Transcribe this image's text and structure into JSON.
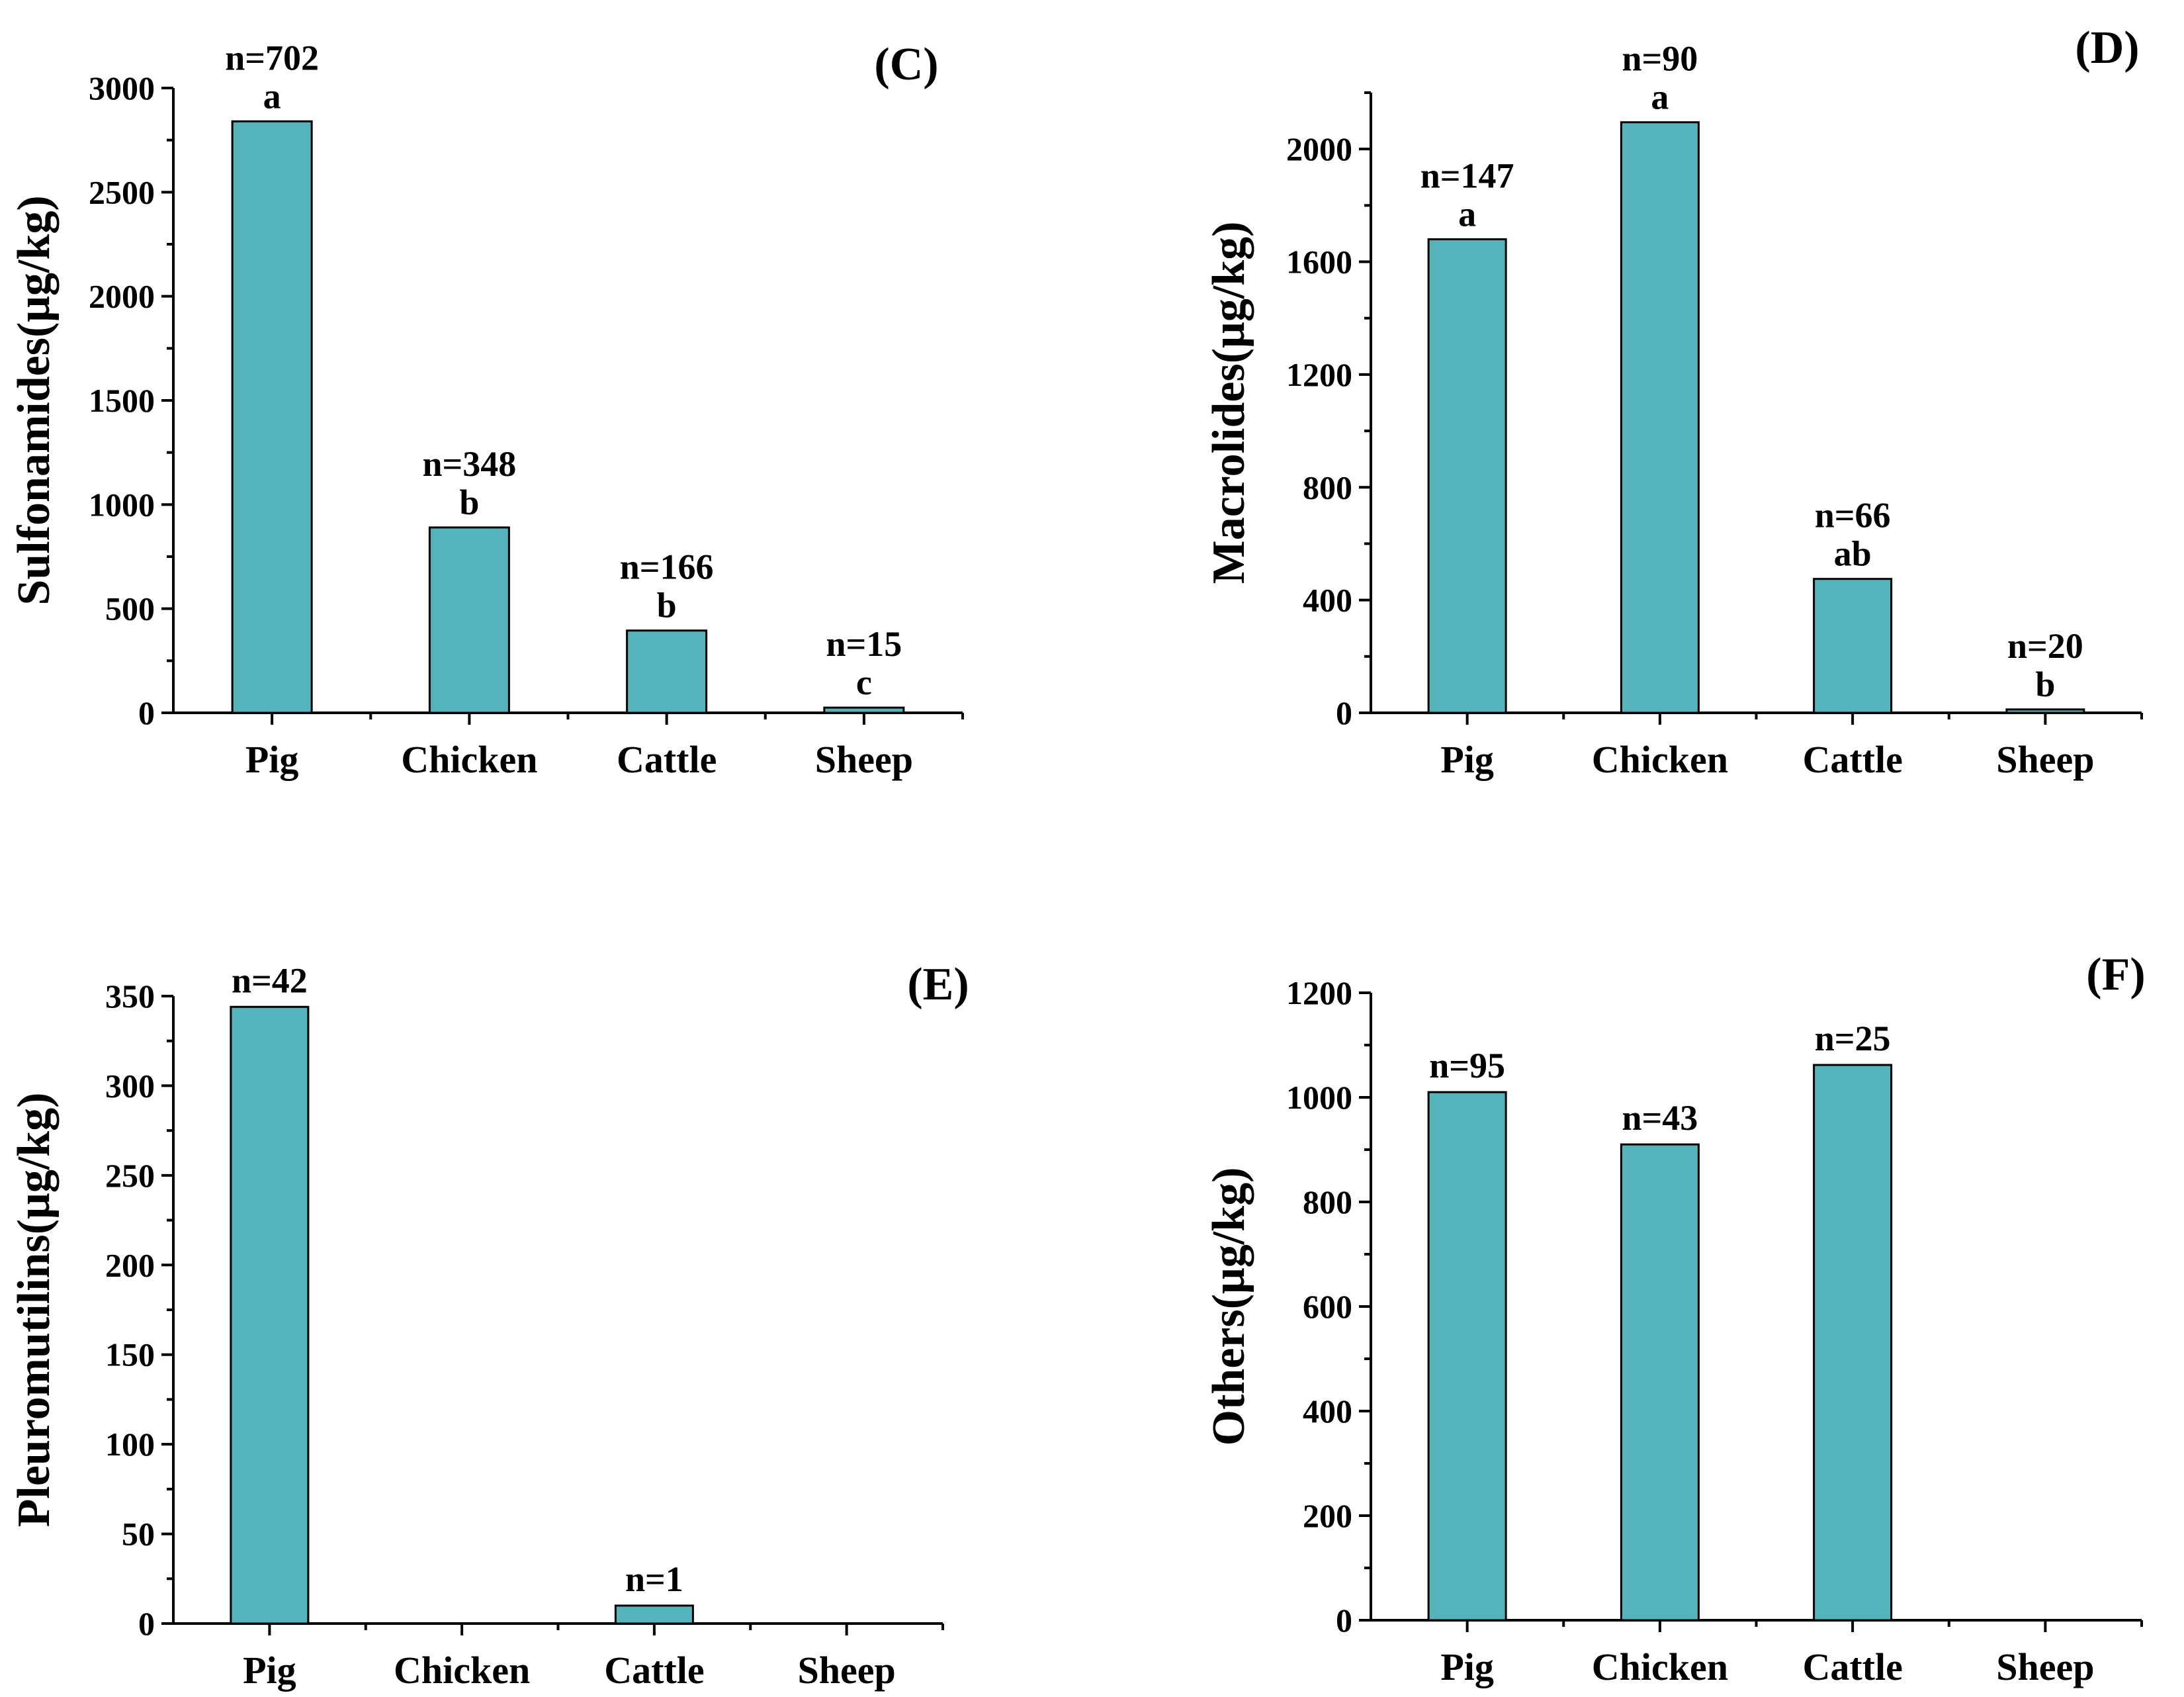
{
  "chart_data": [
    {
      "type": "bar",
      "panel": "(C)",
      "ylabel": "Sulfonamides(μg/kg)",
      "xlabel": "",
      "categories": [
        "Pig",
        "Chicken",
        "Cattle",
        "Sheep"
      ],
      "values": [
        2840,
        890,
        395,
        25
      ],
      "ylim": [
        0,
        3000
      ],
      "yticks": [
        0,
        500,
        1000,
        1500,
        2000,
        2500,
        3000
      ],
      "counts": [
        "n=702",
        "n=348",
        "n=166",
        "n=15"
      ],
      "letters": [
        "a",
        "b",
        "b",
        "c"
      ],
      "color": "#55b3bb"
    },
    {
      "type": "bar",
      "panel": "(D)",
      "ylabel": "Macrolides(μg/kg)",
      "xlabel": "",
      "categories": [
        "Pig",
        "Chicken",
        "Cattle",
        "Sheep"
      ],
      "values": [
        1680,
        2095,
        475,
        12
      ],
      "ylim": [
        0,
        2200
      ],
      "yticks": [
        0,
        400,
        800,
        1200,
        1600,
        2000
      ],
      "counts": [
        "n=147",
        "n=90",
        "n=66",
        "n=20"
      ],
      "letters": [
        "a",
        "a",
        "ab",
        "b"
      ],
      "color": "#55b3bb"
    },
    {
      "type": "bar",
      "panel": "(E)",
      "ylabel": "Pleuromutilins(μg/kg)",
      "xlabel": "",
      "categories": [
        "Pig",
        "Chicken",
        "Cattle",
        "Sheep"
      ],
      "values": [
        344,
        0,
        10,
        0
      ],
      "ylim": [
        0,
        350
      ],
      "yticks": [
        0,
        50,
        100,
        150,
        200,
        250,
        300,
        350
      ],
      "counts": [
        "n=42",
        "",
        "n=1",
        ""
      ],
      "letters": [
        "",
        "",
        "",
        ""
      ],
      "color": "#55b3bb"
    },
    {
      "type": "bar",
      "panel": "(F)",
      "ylabel": "Others(μg/kg)",
      "xlabel": "",
      "categories": [
        "Pig",
        "Chicken",
        "Cattle",
        "Sheep"
      ],
      "values": [
        1010,
        910,
        1062,
        0
      ],
      "ylim": [
        0,
        1200
      ],
      "yticks": [
        0,
        200,
        400,
        600,
        800,
        1000,
        1200
      ],
      "counts": [
        "n=95",
        "n=43",
        "n=25",
        ""
      ],
      "letters": [
        "",
        "",
        "",
        ""
      ],
      "color": "#55b3bb"
    }
  ]
}
